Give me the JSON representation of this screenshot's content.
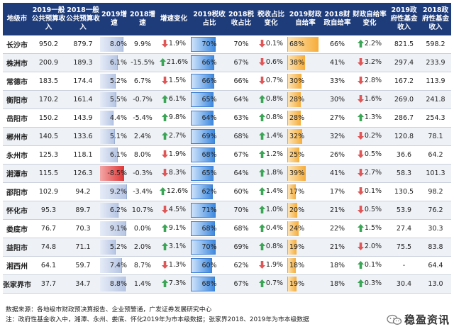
{
  "table": {
    "headers": [
      "地级市",
      "2019一般公共预算收入",
      "2018一般公共预算收入",
      "2019增速",
      "2018增速",
      "增速变化",
      "2019税收占比",
      "2018税收占比",
      "税收占比变化",
      "2019财政自给率",
      "2018财政自给率",
      "财政自给率变化",
      "2019政府性基金收入",
      "2018政府性基金收入"
    ],
    "colors": {
      "header_bg": "#1f3c7a",
      "arrow_up": "#3aa655",
      "arrow_down": "#e05555",
      "arrow_flat": "#f2b134",
      "tax_bar": "#3f8ae0",
      "self_bar": "#f6ad3a",
      "growth_bar_pos": "#b7c6e4",
      "growth_bar_neg": "#e03434"
    },
    "rows": [
      {
        "city": "长沙市",
        "rev2019": "950.2",
        "rev2018": "879.7",
        "growth2019": "8.0%",
        "growth2019_val": 8.0,
        "growth2018": "9.9%",
        "growth_change": "1.9%",
        "growth_change_dir": "down",
        "tax2019": "70%",
        "tax2019_val": 70,
        "tax2018": "70%",
        "tax_change": "0.1%",
        "tax_change_dir": "down",
        "self2019": "68%",
        "self2019_val": 68,
        "self2018": "66%",
        "self_change": "2.2%",
        "self_change_dir": "up",
        "fund2019": "821.5",
        "fund2018": "598.2"
      },
      {
        "city": "株洲市",
        "rev2019": "200.9",
        "rev2018": "189.3",
        "growth2019": "6.1%",
        "growth2019_val": 6.1,
        "growth2018": "-15.5%",
        "growth_change": "21.6%",
        "growth_change_dir": "up",
        "tax2019": "66%",
        "tax2019_val": 66,
        "tax2018": "67%",
        "tax_change": "0.6%",
        "tax_change_dir": "down",
        "self2019": "38%",
        "self2019_val": 38,
        "self2018": "41%",
        "self_change": "3.2%",
        "self_change_dir": "down",
        "fund2019": "297.4",
        "fund2018": "233.9"
      },
      {
        "city": "常德市",
        "rev2019": "183.5",
        "rev2018": "174.4",
        "growth2019": "5.2%",
        "growth2019_val": 5.2,
        "growth2018": "6.7%",
        "growth_change": "1.5%",
        "growth_change_dir": "down",
        "tax2019": "66%",
        "tax2019_val": 66,
        "tax2018": "66%",
        "tax_change": "0.7%",
        "tax_change_dir": "down",
        "self2019": "30%",
        "self2019_val": 30,
        "self2018": "33%",
        "self_change": "2.8%",
        "self_change_dir": "down",
        "fund2019": "167.2",
        "fund2018": "113.9"
      },
      {
        "city": "衡阳市",
        "rev2019": "170.2",
        "rev2018": "161.4",
        "growth2019": "5.5%",
        "growth2019_val": 5.5,
        "growth2018": "-0.7%",
        "growth_change": "6.1%",
        "growth_change_dir": "up",
        "tax2019": "65%",
        "tax2019_val": 65,
        "tax2018": "64%",
        "tax_change": "0.8%",
        "tax_change_dir": "up",
        "self2019": "28%",
        "self2019_val": 28,
        "self2018": "30%",
        "self_change": "1.6%",
        "self_change_dir": "down",
        "fund2019": "269.0",
        "fund2018": "241.8"
      },
      {
        "city": "岳阳市",
        "rev2019": "150.2",
        "rev2018": "143.9",
        "growth2019": "4.4%",
        "growth2019_val": 4.4,
        "growth2018": "-5.4%",
        "growth_change": "9.8%",
        "growth_change_dir": "up",
        "tax2019": "64%",
        "tax2019_val": 64,
        "tax2018": "63%",
        "tax_change": "0.8%",
        "tax_change_dir": "up",
        "self2019": "28%",
        "self2019_val": 28,
        "self2018": "27%",
        "self_change": "1.3%",
        "self_change_dir": "up",
        "fund2019": "286.7",
        "fund2018": "254.3"
      },
      {
        "city": "郴州市",
        "rev2019": "140.5",
        "rev2018": "133.6",
        "growth2019": "5.1%",
        "growth2019_val": 5.1,
        "growth2018": "2.4%",
        "growth_change": "2.7%",
        "growth_change_dir": "up",
        "tax2019": "69%",
        "tax2019_val": 69,
        "tax2018": "68%",
        "tax_change": "1.4%",
        "tax_change_dir": "up",
        "self2019": "32%",
        "self2019_val": 32,
        "self2018": "32%",
        "self_change": "0.2%",
        "self_change_dir": "down",
        "fund2019": "120.8",
        "fund2018": "78.1"
      },
      {
        "city": "永州市",
        "rev2019": "125.3",
        "rev2018": "118.1",
        "growth2019": "6.1%",
        "growth2019_val": 6.1,
        "growth2018": "8.0%",
        "growth_change": "1.9%",
        "growth_change_dir": "down",
        "tax2019": "68%",
        "tax2019_val": 68,
        "tax2018": "67%",
        "tax_change": "1.2%",
        "tax_change_dir": "up",
        "self2019": "25%",
        "self2019_val": 25,
        "self2018": "26%",
        "self_change": "0.5%",
        "self_change_dir": "down",
        "fund2019": "36.6",
        "fund2018": "64.2"
      },
      {
        "city": "湘潭市",
        "rev2019": "115.5",
        "rev2018": "126.3",
        "growth2019": "-8.5%",
        "growth2019_val": -8.5,
        "growth2018": "-0.3%",
        "growth_change": "8.3%",
        "growth_change_dir": "down",
        "tax2019": "65%",
        "tax2019_val": 65,
        "tax2018": "64%",
        "tax_change": "1.8%",
        "tax_change_dir": "up",
        "self2019": "39%",
        "self2019_val": 39,
        "self2018": "41%",
        "self_change": "2.7%",
        "self_change_dir": "down",
        "fund2019": "58.3",
        "fund2018": "101.3"
      },
      {
        "city": "邵阳市",
        "rev2019": "102.9",
        "rev2018": "94.2",
        "growth2019": "9.2%",
        "growth2019_val": 9.2,
        "growth2018": "-3.4%",
        "growth_change": "12.6%",
        "growth_change_dir": "up",
        "tax2019": "62%",
        "tax2019_val": 62,
        "tax2018": "60%",
        "tax_change": "1.4%",
        "tax_change_dir": "up",
        "self2019": "17%",
        "self2019_val": 17,
        "self2018": "17%",
        "self_change": "0.1%",
        "self_change_dir": "down",
        "fund2019": "130.5",
        "fund2018": "98.2"
      },
      {
        "city": "怀化市",
        "rev2019": "95.3",
        "rev2018": "89.7",
        "growth2019": "6.2%",
        "growth2019_val": 6.2,
        "growth2018": "10.7%",
        "growth_change": "4.5%",
        "growth_change_dir": "down",
        "tax2019": "71%",
        "tax2019_val": 71,
        "tax2018": "70%",
        "tax_change": "1.0%",
        "tax_change_dir": "up",
        "self2019": "20%",
        "self2019_val": 20,
        "self2018": "21%",
        "self_change": "0.5%",
        "self_change_dir": "down",
        "fund2019": "53.9",
        "fund2018": "76.2"
      },
      {
        "city": "娄底市",
        "rev2019": "76.7",
        "rev2018": "70.3",
        "growth2019": "9.1%",
        "growth2019_val": 9.1,
        "growth2018": "0.0%",
        "growth_change": "9.1%",
        "growth_change_dir": "up",
        "tax2019": "68%",
        "tax2019_val": 68,
        "tax2018": "68%",
        "tax_change": "0.4%",
        "tax_change_dir": "up",
        "self2019": "24%",
        "self2019_val": 24,
        "self2018": "22%",
        "self_change": "1.5%",
        "self_change_dir": "up",
        "fund2019": "27.4",
        "fund2018": "30.3"
      },
      {
        "city": "益阳市",
        "rev2019": "74.8",
        "rev2018": "71.1",
        "growth2019": "5.2%",
        "growth2019_val": 5.2,
        "growth2018": "2.0%",
        "growth_change": "3.1%",
        "growth_change_dir": "up",
        "tax2019": "70%",
        "tax2019_val": 70,
        "tax2018": "69%",
        "tax_change": "0.8%",
        "tax_change_dir": "up",
        "self2019": "19%",
        "self2019_val": 19,
        "self2018": "21%",
        "self_change": "2.0%",
        "self_change_dir": "down",
        "fund2019": "75.5",
        "fund2018": "83.8"
      },
      {
        "city": "湘西州",
        "rev2019": "64.1",
        "rev2018": "59.7",
        "growth2019": "7.4%",
        "growth2019_val": 7.4,
        "growth2018": "8.7%",
        "growth_change": "1.3%",
        "growth_change_dir": "down",
        "tax2019": "60%",
        "tax2019_val": 60,
        "tax2018": "62%",
        "tax_change": "1.9%",
        "tax_change_dir": "down",
        "self2019": "18%",
        "self2019_val": 18,
        "self2018": "18%",
        "self_change": "0.1%",
        "self_change_dir": "up",
        "fund2019": "-",
        "fund2018": "64.4"
      },
      {
        "city": "张家界市",
        "rev2019": "37.7",
        "rev2018": "34.7",
        "growth2019": "8.8%",
        "growth2019_val": 8.8,
        "growth2018": "1.4%",
        "growth_change": "7.3%",
        "growth_change_dir": "up",
        "tax2019": "68%",
        "tax2019_val": 68,
        "tax2018": "67%",
        "tax_change": "0.7%",
        "tax_change_dir": "up",
        "self2019": "19%",
        "self2019_val": 19,
        "self2018": "18%",
        "self_change": "0.3%",
        "self_change_dir": "up",
        "fund2019": "30.4",
        "fund2018": "13.0"
      }
    ]
  },
  "notes": {
    "line1": "数据来源：各地级市财政预决算报告、企业预警通，广发证券发展研究中心",
    "line2": "注：政府性基金收入中，湘潭、永州、娄底、怀化2019年为市本级数据；张家界2018、2019年为市本级数据"
  },
  "brand": {
    "name": "稳盈资讯",
    "logo_icon": "wechat-icon"
  }
}
